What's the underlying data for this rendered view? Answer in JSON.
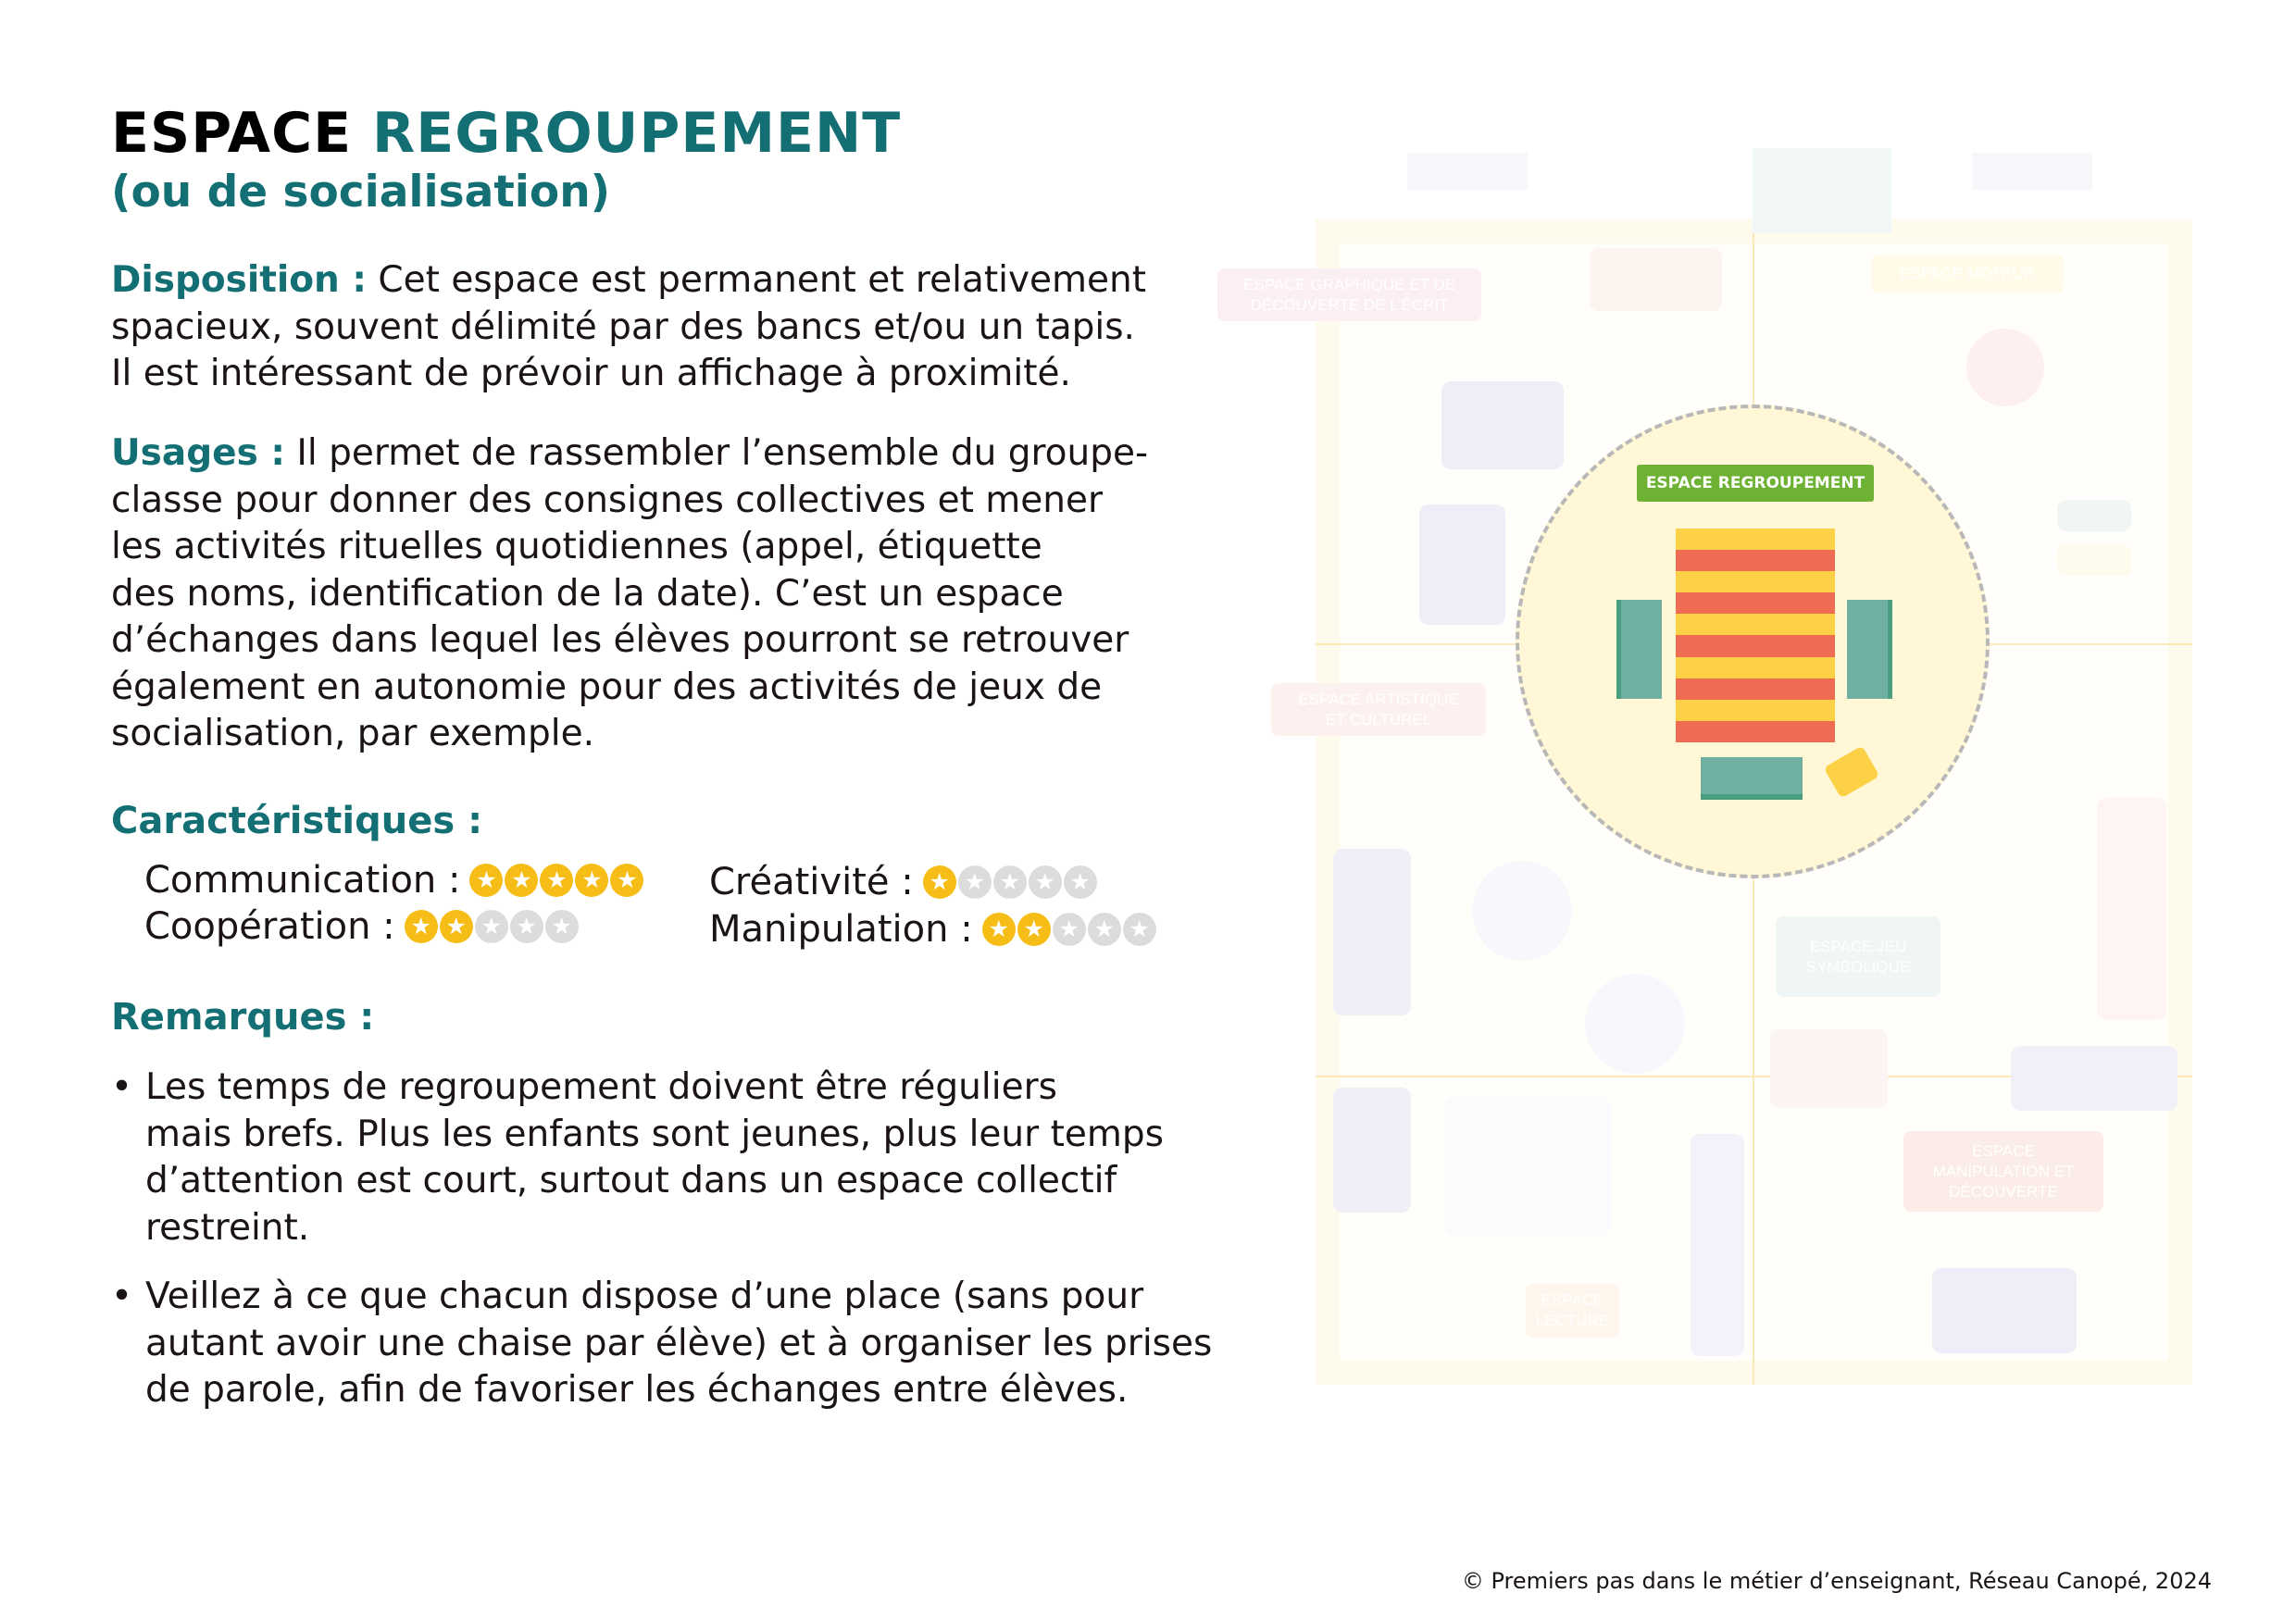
{
  "title": {
    "part1": "ESPACE",
    "part2": "REGROUPEMENT",
    "subtitle": "(ou de socialisation)"
  },
  "disposition": {
    "label": "Disposition :",
    "lines": [
      "Cet espace est permanent et relativement",
      "spacieux, souvent délimité par des bancs et/ou un tapis.",
      "Il est intéressant de prévoir un affichage à proximité."
    ]
  },
  "usages": {
    "label": "Usages :",
    "lines": [
      "Il permet de rassembler l’ensemble du groupe-",
      "classe pour donner des consignes collectives et mener",
      "les activités rituelles quotidiennes (appel, étiquette",
      "des noms, identification de la date). C’est un espace",
      "d’échanges dans lequel les élèves pourront se retrouver",
      "également en autonomie pour des activités de jeux de",
      "socialisation, par exemple."
    ]
  },
  "characteristics": {
    "heading": "Caractéristiques :",
    "items": [
      {
        "label": "Communication :",
        "rating": 5,
        "max": 5
      },
      {
        "label": "Coopération :",
        "rating": 2,
        "max": 5
      },
      {
        "label": "Créativité :",
        "rating": 1,
        "max": 5
      },
      {
        "label": "Manipulation :",
        "rating": 2,
        "max": 5
      }
    ]
  },
  "remarks": {
    "heading": "Remarques :",
    "bullets": [
      [
        "Les temps de regroupement doivent être réguliers",
        "mais brefs. Plus les enfants sont jeunes, plus leur temps",
        "d’attention est court, surtout dans un espace collectif",
        "restreint."
      ],
      [
        "Veillez à ce que chacun dispose d’une place (sans pour",
        "autant avoir une chaise par élève) et à organiser les prises",
        "de parole, afin de favoriser les échanges entre élèves."
      ]
    ]
  },
  "plan": {
    "highlight_label": "ESPACE REGROUPEMENT",
    "faded_labels": {
      "graphique": "ESPACE GRAPHIQUE ET DE DÉCOUVERTE DE L’ÉCRIT",
      "moteur": "ESPACE MOTEUR",
      "artistique": "ESPACE ARTISTIQUE ET CULTUREL",
      "jeu": "ESPACE JEU SYMBOLIQUE",
      "manipulation": "ESPACE MANIPULATION ET DÉCOUVERTE",
      "lecture": "ESPACE LECTURE"
    },
    "colors": {
      "highlight": "#6db233",
      "rug_yellow": "#fcd145",
      "rug_red": "#ee6c52",
      "bench": "#6fb0a3",
      "zone": "#fff7d6"
    }
  },
  "footer": "© Premiers pas dans le métier d’enseignant, Réseau Canopé, 2024"
}
